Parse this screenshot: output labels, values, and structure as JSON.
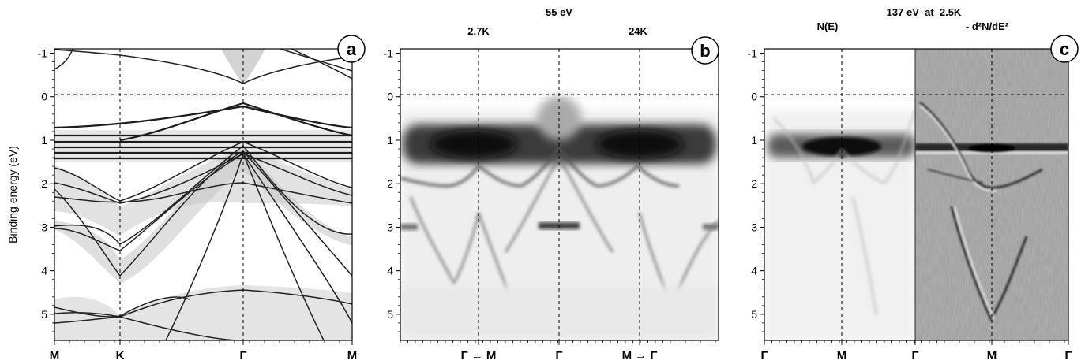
{
  "figure": {
    "y_axis_label": "Binding energy (eV)",
    "y_ticks": [
      "-1",
      "0",
      "1",
      "2",
      "3",
      "4",
      "5"
    ],
    "y_range_eV": [
      -1.1,
      5.6
    ]
  },
  "panel_a": {
    "badge": "a",
    "x_labels": [
      "M",
      "K",
      "Γ",
      "M"
    ]
  },
  "panel_b": {
    "badge": "b",
    "energy_header": "55 eV",
    "left_temp": "2.7K",
    "right_temp": "24K",
    "x_labels": [
      "Γ ← M",
      "Γ",
      "M → Γ"
    ]
  },
  "panel_c": {
    "badge": "c",
    "header": "137 eV  at  2.5K",
    "left_label": "N(E)",
    "right_label": "- d²N/dE²",
    "x_labels": [
      "Γ",
      "M",
      "Γ",
      "M",
      "Γ"
    ]
  },
  "colors": {
    "frame": "#000000",
    "band": "#1a1a1a",
    "d2_bg": "#a3a3a3"
  }
}
